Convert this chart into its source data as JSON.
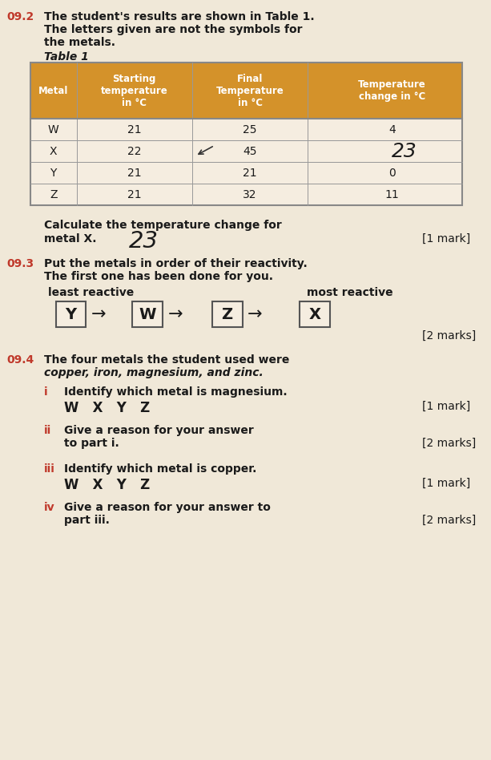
{
  "bg_color": "#f0e8d8",
  "header_color": "#d4922a",
  "header_text_color": "#ffffff",
  "body_text_color": "#1a1a1a",
  "question_num_color": "#c0392b",
  "section_092_label": "09.2",
  "section_093_label": "09.3",
  "section_094_label": "09.4",
  "section_092_line1": "The student's results are shown in Table 1.",
  "section_092_line2": "The letters given are not the symbols for",
  "section_092_line3": "the metals.",
  "table_title": "Table 1",
  "table_headers": [
    "Metal",
    "Starting\ntemperature\nin °C",
    "Final\nTemperature\nin °C",
    "Temperature\nchange in °C"
  ],
  "table_rows": [
    [
      "W",
      "21",
      "25",
      "4"
    ],
    [
      "X",
      "22",
      "45",
      ""
    ],
    [
      "Y",
      "21",
      "21",
      "0"
    ],
    [
      "Z",
      "21",
      "32",
      "11"
    ]
  ],
  "handwritten_x_change": "23",
  "handwritten_calc": "23",
  "calc_text_line1": "Calculate the temperature change for",
  "calc_text_line2": "metal X.",
  "calc_mark": "[1 mark]",
  "section_093_line1": "Put the metals in order of their reactivity.",
  "section_093_line2": "The first one has been done for you.",
  "least_reactive_label": "least reactive",
  "most_reactive_label": "most reactive",
  "reactivity_order": [
    "Y",
    "W",
    "Z",
    "X"
  ],
  "reactivity_marks": "[2 marks]",
  "section_094_line1": "The four metals the student used were",
  "section_094_line2": "copper, iron, magnesium, and zinc.",
  "part_i_label": "i",
  "part_i_text": "Identify which metal is magnesium.",
  "part_i_options": "W   X   Y   Z",
  "part_i_mark": "[1 mark]",
  "part_ii_label": "ii",
  "part_ii_text_line1": "Give a reason for your answer",
  "part_ii_text_line2": "to part i.",
  "part_ii_mark": "[2 marks]",
  "part_iii_label": "iii",
  "part_iii_text": "Identify which metal is copper.",
  "part_iii_options": "W   X   Y   Z",
  "part_iii_mark": "[1 mark]",
  "part_iv_label": "iv",
  "part_iv_text_line1": "Give a reason for your answer to",
  "part_iv_text_line2": "part iii.",
  "part_iv_mark": "[2 marks]"
}
